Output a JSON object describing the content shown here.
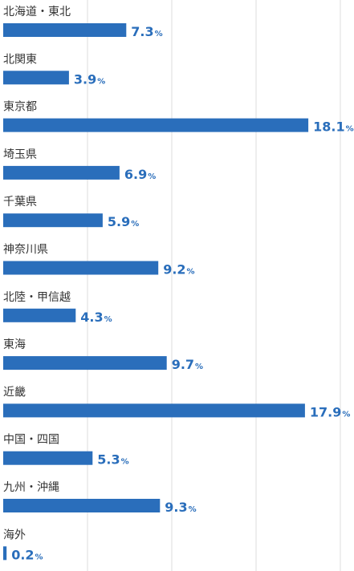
{
  "chart_data": {
    "type": "bar",
    "orientation": "horizontal",
    "categories": [
      "北海道・東北",
      "北関東",
      "東京都",
      "埼玉県",
      "千葉県",
      "神奈川県",
      "北陸・甲信越",
      "東海",
      "近畿",
      "中国・四国",
      "九州・沖縄",
      "海外"
    ],
    "values": [
      7.3,
      3.9,
      18.1,
      6.9,
      5.9,
      9.2,
      4.3,
      9.7,
      17.9,
      5.3,
      9.3,
      0.2
    ],
    "value_unit": "%",
    "xlim": [
      0,
      21
    ],
    "grid": "vertical gridlines",
    "legend": "none",
    "title": "",
    "xlabel": "",
    "ylabel": "",
    "colors": {
      "bar": "#2a6ebb",
      "label_value": "#2a6ebb",
      "category_text": "#333333",
      "grid": "#dddddd"
    }
  }
}
